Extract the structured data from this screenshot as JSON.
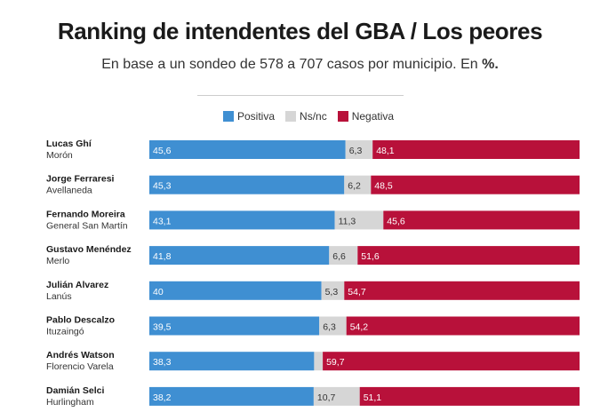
{
  "chart_data": {
    "type": "bar",
    "stacked": true,
    "orientation": "horizontal",
    "title": "Ranking de intendentes del GBA / Los peores",
    "subtitle": "En base a un sondeo de 578 a 707 casos por municipio. En",
    "subtitle_unit": "%.",
    "xlim": [
      0,
      100
    ],
    "legend_position": "top-center",
    "series": [
      {
        "name": "Positiva",
        "color": "#3f8fd2",
        "values": [
          45.6,
          45.3,
          43.1,
          41.8,
          40,
          39.5,
          38.3,
          38.2
        ],
        "labels": [
          "45,6",
          "45,3",
          "43,1",
          "41,8",
          "40",
          "39,5",
          "38,3",
          "38,2"
        ]
      },
      {
        "name": "Ns/nc",
        "color": "#d6d6d6",
        "values": [
          6.3,
          6.2,
          11.3,
          6.6,
          5.3,
          6.3,
          2,
          10.7
        ],
        "labels": [
          "6,3",
          "6,2",
          "11,3",
          "6,6",
          "5,3",
          "6,3",
          "",
          "10,7"
        ]
      },
      {
        "name": "Negativa",
        "color": "#b8113a",
        "values": [
          48.1,
          48.5,
          45.6,
          51.6,
          54.7,
          54.2,
          59.7,
          51.1
        ],
        "labels": [
          "48,1",
          "48,5",
          "45,6",
          "51,6",
          "54,7",
          "54,2",
          "59,7",
          "51,1"
        ]
      }
    ],
    "categories": [
      {
        "name": "Lucas Ghí",
        "place": "Morón"
      },
      {
        "name": "Jorge Ferraresi",
        "place": "Avellaneda"
      },
      {
        "name": "Fernando Moreira",
        "place": "General San Martín"
      },
      {
        "name": "Gustavo Menéndez",
        "place": "Merlo"
      },
      {
        "name": "Julián Alvarez",
        "place": "Lanús"
      },
      {
        "name": "Pablo Descalzo",
        "place": "Ituzaingó"
      },
      {
        "name": "Andrés Watson",
        "place": "Florencio Varela"
      },
      {
        "name": "Damián Selci",
        "place": "Hurlingham"
      }
    ]
  }
}
